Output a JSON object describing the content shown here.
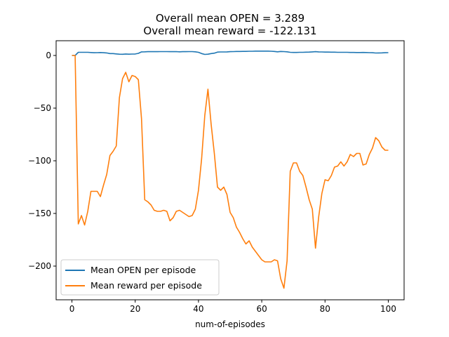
{
  "chart_data": {
    "type": "line",
    "title_lines": [
      "Overall mean OPEN = 3.289",
      "Overall mean reward = -122.131"
    ],
    "xlabel": "num-of-episodes",
    "ylabel": "",
    "xlim": [
      -5,
      105
    ],
    "ylim": [
      -232,
      14
    ],
    "xticks": [
      0,
      20,
      40,
      60,
      80,
      100
    ],
    "xtick_labels": [
      "0",
      "20",
      "40",
      "60",
      "80",
      "100"
    ],
    "yticks": [
      0,
      -50,
      -100,
      -150,
      -200
    ],
    "ytick_labels": [
      "0",
      "−50",
      "−100",
      "−150",
      "−200"
    ],
    "grid": false,
    "legend_position": "lower-left",
    "series": [
      {
        "name": "Mean OPEN per episode",
        "color": "#1f77b4",
        "x": [
          0,
          1,
          2,
          3,
          4,
          5,
          6,
          7,
          8,
          9,
          10,
          11,
          12,
          13,
          14,
          15,
          16,
          17,
          18,
          19,
          20,
          21,
          22,
          23,
          24,
          25,
          26,
          27,
          28,
          29,
          30,
          31,
          32,
          33,
          34,
          35,
          36,
          37,
          38,
          39,
          40,
          41,
          42,
          43,
          44,
          45,
          46,
          47,
          48,
          49,
          50,
          51,
          52,
          53,
          54,
          55,
          56,
          57,
          58,
          59,
          60,
          61,
          62,
          63,
          64,
          65,
          66,
          67,
          68,
          69,
          70,
          71,
          72,
          73,
          74,
          75,
          76,
          77,
          78,
          79,
          80,
          81,
          82,
          83,
          84,
          85,
          86,
          87,
          88,
          89,
          90,
          91,
          92,
          93,
          94,
          95,
          96,
          97,
          98,
          99,
          100
        ],
        "values": [
          0,
          0,
          3,
          3,
          3,
          3,
          2.8,
          2.6,
          2.7,
          2.8,
          2.6,
          2.4,
          1.8,
          1.8,
          1.5,
          1.2,
          1.1,
          1.4,
          1.2,
          1.3,
          1.4,
          2,
          3.4,
          3.5,
          3.6,
          3.6,
          3.6,
          3.6,
          3.7,
          3.7,
          3.7,
          3.6,
          3.7,
          3.6,
          3.5,
          3.6,
          3.6,
          3.7,
          3.7,
          3.5,
          3.0,
          1.8,
          1.0,
          1.2,
          1.8,
          2.2,
          3.2,
          3.3,
          3.3,
          3.4,
          3.6,
          3.7,
          3.8,
          3.8,
          3.9,
          3.9,
          4,
          4,
          4.1,
          4.1,
          4.1,
          4.1,
          4.1,
          4,
          3.8,
          3.5,
          3.8,
          3.7,
          3.5,
          3.0,
          2.9,
          2.9,
          3,
          3,
          3.1,
          3.2,
          3.4,
          3.6,
          3.4,
          3.3,
          3.2,
          3.2,
          3.1,
          3.1,
          3,
          3,
          3,
          3,
          2.9,
          2.9,
          2.8,
          2.8,
          2.9,
          2.8,
          2.7,
          2.6,
          2.3,
          2.4,
          2.5,
          2.6,
          2.7
        ]
      },
      {
        "name": "Mean reward per episode",
        "color": "#ff7f0e",
        "x": [
          0,
          1,
          2,
          3,
          4,
          5,
          6,
          7,
          8,
          9,
          10,
          11,
          12,
          13,
          14,
          15,
          16,
          17,
          18,
          19,
          20,
          21,
          22,
          23,
          24,
          25,
          26,
          27,
          28,
          29,
          30,
          31,
          32,
          33,
          34,
          35,
          36,
          37,
          38,
          39,
          40,
          41,
          42,
          43,
          44,
          45,
          46,
          47,
          48,
          49,
          50,
          51,
          52,
          53,
          54,
          55,
          56,
          57,
          58,
          59,
          60,
          61,
          62,
          63,
          64,
          65,
          66,
          67,
          68,
          69,
          70,
          71,
          72,
          73,
          74,
          75,
          76,
          77,
          78,
          79,
          80,
          81,
          82,
          83,
          84,
          85,
          86,
          87,
          88,
          89,
          90,
          91,
          92,
          93,
          94,
          95,
          96,
          97,
          98,
          99,
          100
        ],
        "values": [
          0,
          0,
          -160,
          -152,
          -161,
          -148,
          -129,
          -129,
          -129,
          -134,
          -123,
          -113,
          -95,
          -91,
          -86,
          -40,
          -22,
          -16,
          -25,
          -19,
          -20,
          -23,
          -60,
          -137,
          -139,
          -142,
          -147,
          -148,
          -148,
          -147,
          -148,
          -157,
          -154,
          -148,
          -147,
          -149,
          -151,
          -153,
          -152,
          -146,
          -128,
          -98,
          -57,
          -32,
          -65,
          -93,
          -125,
          -128,
          -125,
          -132,
          -149,
          -154,
          -163,
          -168,
          -174,
          -179,
          -176,
          -182,
          -186,
          -190,
          -194,
          -196,
          -196,
          -196,
          -194,
          -195,
          -212,
          -221,
          -195,
          -110,
          -102,
          -102,
          -110,
          -114,
          -125,
          -137,
          -146,
          -183,
          -153,
          -131,
          -118,
          -119,
          -114,
          -106,
          -105,
          -101,
          -105,
          -101,
          -94,
          -96,
          -93,
          -93,
          -104,
          -103,
          -94,
          -88,
          -78,
          -81,
          -87,
          -90,
          -90
        ]
      }
    ]
  }
}
